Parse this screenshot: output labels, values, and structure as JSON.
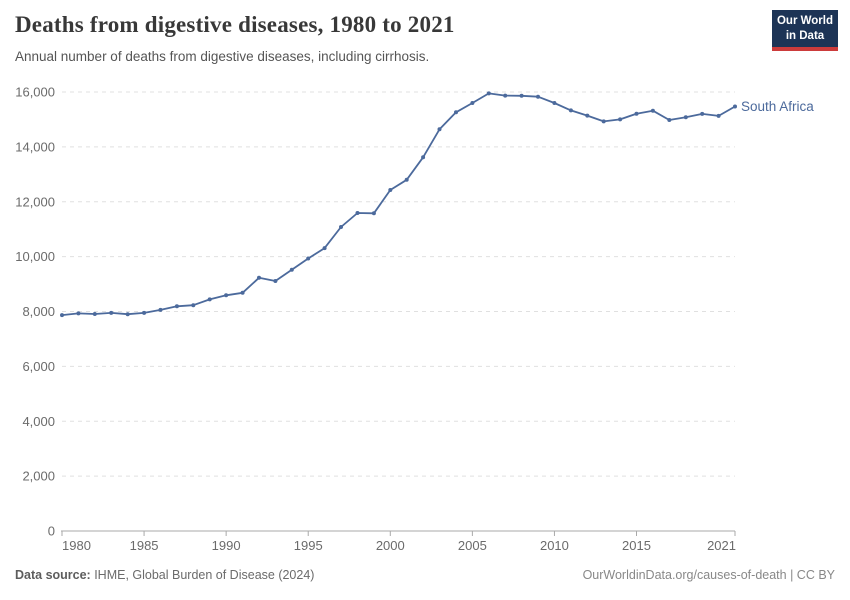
{
  "header": {
    "logo": {
      "line1": "Our World",
      "line2": "in Data",
      "bg_color": "#1d3456",
      "accent_color": "#cc3b3b"
    }
  },
  "footer": {
    "source_label": "Data source:",
    "source_text": " IHME, Global Burden of Disease (2024)",
    "credit": "OurWorldinData.org/causes-of-death | CC BY"
  },
  "chart_data": {
    "type": "line",
    "title": "Deaths from digestive diseases, 1980 to 2021",
    "subtitle": "Annual number of deaths from digestive diseases, including cirrhosis.",
    "xlabel": "",
    "ylabel": "",
    "xlim": [
      1980,
      2021
    ],
    "ylim": [
      0,
      16000
    ],
    "grid": "horizontal-dashed",
    "legend_position": "end-of-line-label",
    "x_ticks": [
      1980,
      1985,
      1990,
      1995,
      2000,
      2005,
      2010,
      2015,
      2021
    ],
    "y_ticks": [
      0,
      2000,
      4000,
      6000,
      8000,
      10000,
      12000,
      14000,
      16000
    ],
    "series": [
      {
        "name": "South Africa",
        "color": "#4C6A9C",
        "x": [
          1980,
          1981,
          1982,
          1983,
          1984,
          1985,
          1986,
          1987,
          1988,
          1989,
          1990,
          1991,
          1992,
          1993,
          1994,
          1995,
          1996,
          1997,
          1998,
          1999,
          2000,
          2001,
          2002,
          2003,
          2004,
          2005,
          2006,
          2007,
          2008,
          2009,
          2010,
          2011,
          2012,
          2013,
          2014,
          2015,
          2016,
          2017,
          2018,
          2019,
          2020,
          2021
        ],
        "values": [
          7870,
          7930,
          7910,
          7950,
          7900,
          7950,
          8060,
          8190,
          8230,
          8440,
          8590,
          8680,
          9230,
          9110,
          9520,
          9930,
          10310,
          11080,
          11590,
          11580,
          12430,
          12800,
          13620,
          14640,
          15260,
          15600,
          15950,
          15870,
          15860,
          15830,
          15600,
          15330,
          15140,
          14930,
          15000,
          15210,
          15320,
          14980,
          15080,
          15200,
          15130,
          15470
        ]
      }
    ],
    "colors": {
      "grid": "#e0e0e0",
      "axis": "#a9a9a9",
      "tick_label": "#6b6b6b"
    }
  }
}
